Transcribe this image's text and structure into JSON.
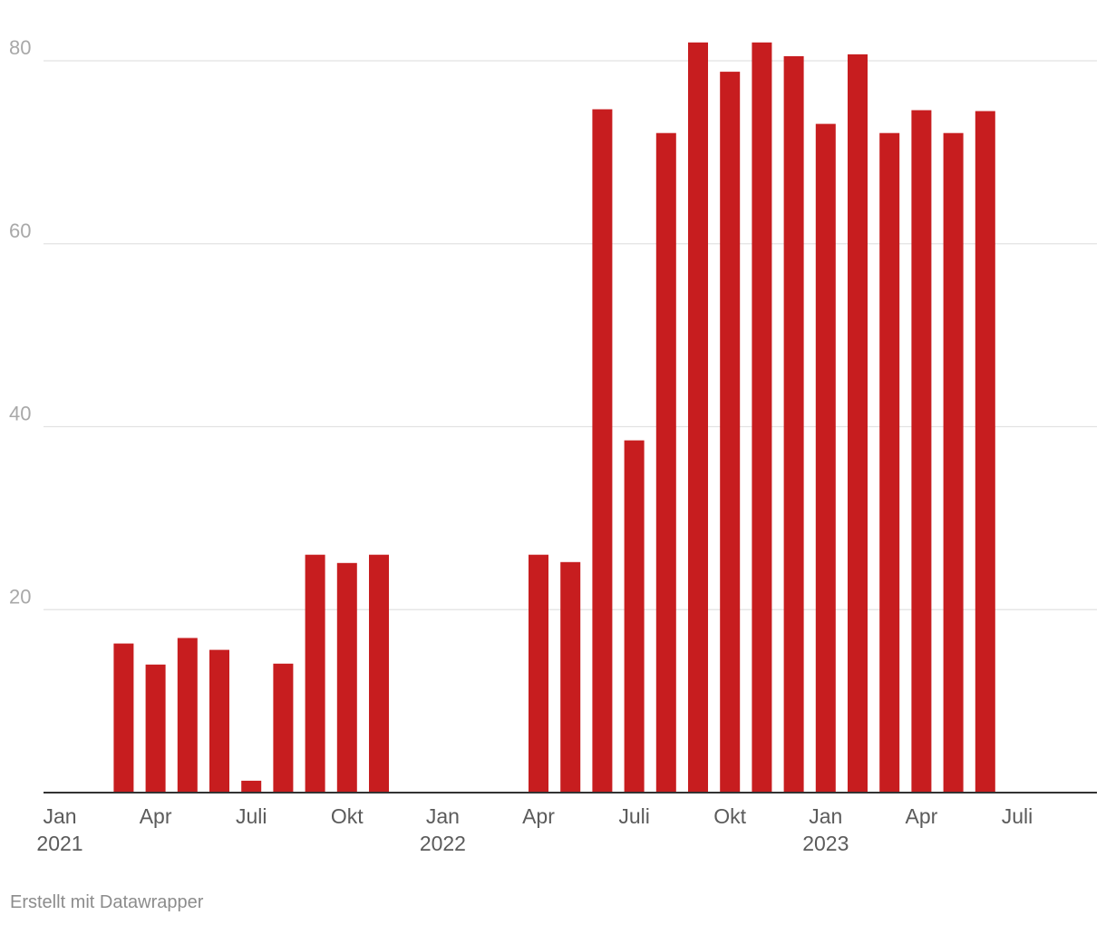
{
  "chart_data": {
    "type": "bar",
    "title": "",
    "xlabel": "",
    "ylabel": "",
    "ylim": [
      0,
      80
    ],
    "yticks": [
      20,
      40,
      60,
      80
    ],
    "grid": true,
    "bar_color": "#c71d1f",
    "categories": [
      "2021-01",
      "2021-02",
      "2021-03",
      "2021-04",
      "2021-05",
      "2021-06",
      "2021-07",
      "2021-08",
      "2021-09",
      "2021-10",
      "2021-11",
      "2021-12",
      "2022-01",
      "2022-02",
      "2022-03",
      "2022-04",
      "2022-05",
      "2022-06",
      "2022-07",
      "2022-08",
      "2022-09",
      "2022-10",
      "2022-11",
      "2022-12",
      "2023-01",
      "2023-02",
      "2023-03",
      "2023-04",
      "2023-05",
      "2023-06",
      "2023-07"
    ],
    "values": [
      null,
      null,
      16.3,
      14.0,
      16.9,
      15.6,
      1.3,
      14.1,
      26.0,
      25.1,
      26.0,
      null,
      null,
      null,
      null,
      26.0,
      25.2,
      74.7,
      38.5,
      72.1,
      82.0,
      78.8,
      82.0,
      80.5,
      73.1,
      80.7,
      72.1,
      74.6,
      72.1,
      74.5,
      null
    ],
    "x_tick_labels": [
      {
        "category": "2021-01",
        "line1": "Jan",
        "line2": "2021"
      },
      {
        "category": "2021-04",
        "line1": "Apr",
        "line2": ""
      },
      {
        "category": "2021-07",
        "line1": "Juli",
        "line2": ""
      },
      {
        "category": "2021-10",
        "line1": "Okt",
        "line2": ""
      },
      {
        "category": "2022-01",
        "line1": "Jan",
        "line2": "2022"
      },
      {
        "category": "2022-04",
        "line1": "Apr",
        "line2": ""
      },
      {
        "category": "2022-07",
        "line1": "Juli",
        "line2": ""
      },
      {
        "category": "2022-10",
        "line1": "Okt",
        "line2": ""
      },
      {
        "category": "2023-01",
        "line1": "Jan",
        "line2": "2023"
      },
      {
        "category": "2023-04",
        "line1": "Apr",
        "line2": ""
      },
      {
        "category": "2023-07",
        "line1": "Juli",
        "line2": ""
      }
    ]
  },
  "footer": {
    "credit": "Erstellt mit Datawrapper"
  }
}
